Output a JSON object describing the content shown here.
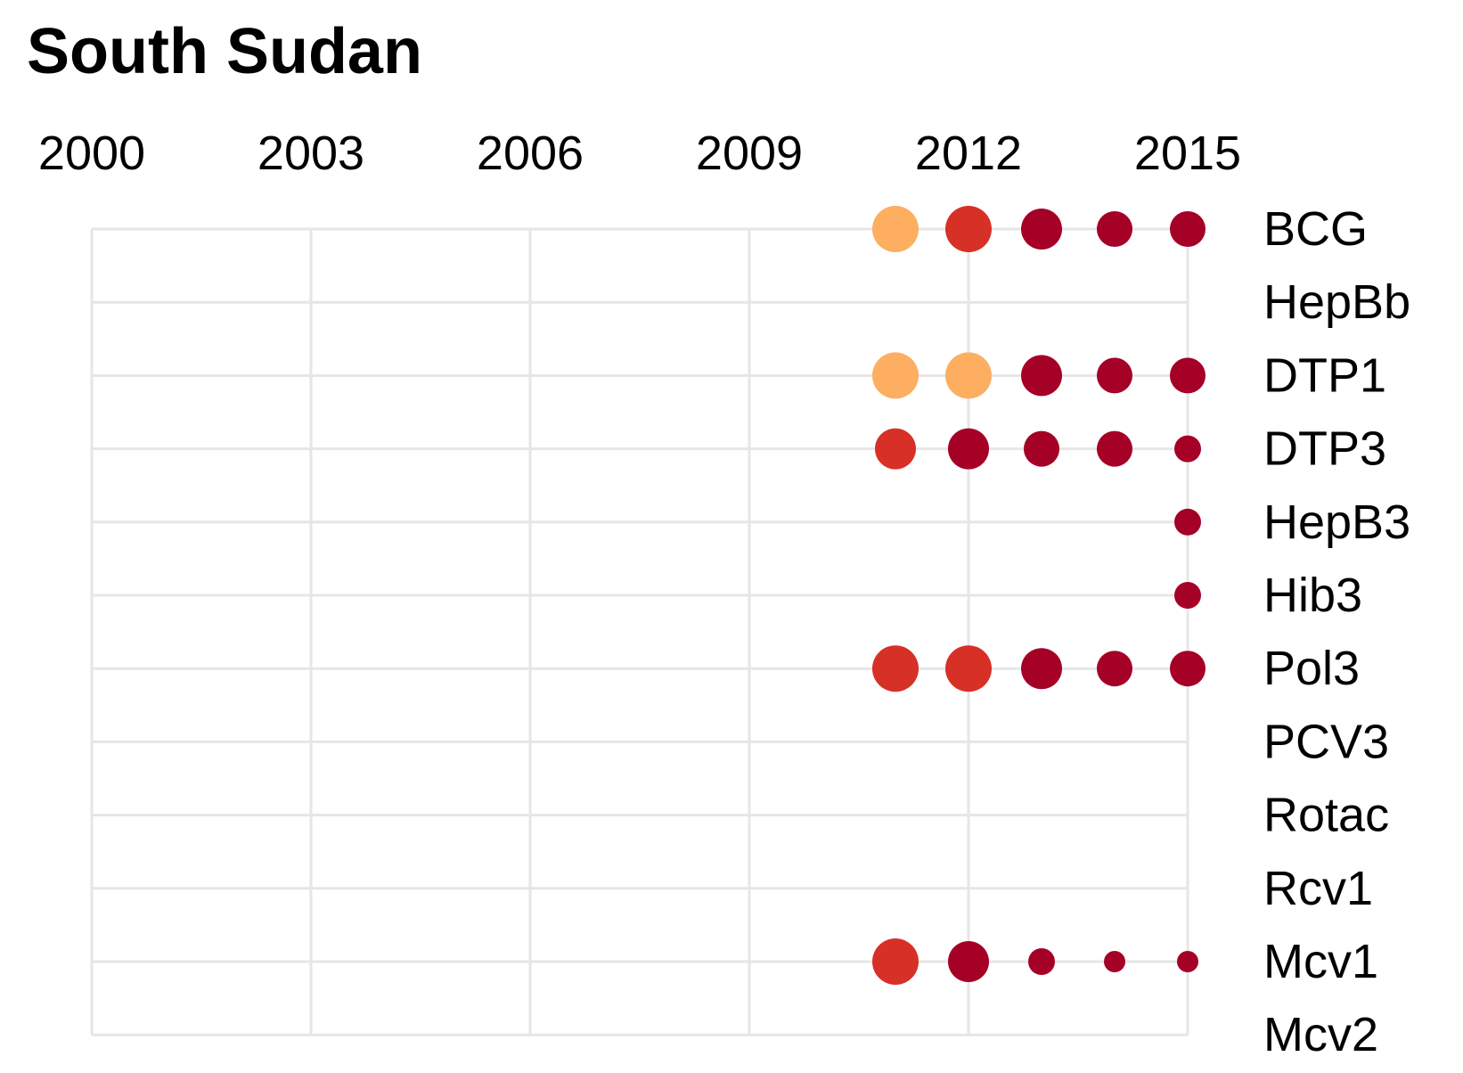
{
  "chart_data": {
    "type": "scatter",
    "title": "South Sudan",
    "x_ticks": [
      2000,
      2003,
      2006,
      2009,
      2012,
      2015
    ],
    "xlim": [
      2000,
      2015
    ],
    "rows": [
      "BCG",
      "HepBb",
      "DTP1",
      "DTP3",
      "HepB3",
      "Hib3",
      "Pol3",
      "PCV3",
      "Rotac",
      "Rcv1",
      "Mcv1",
      "Mcv2"
    ],
    "grid": true,
    "colors": {
      "orange": "#fdae61",
      "red": "#d73027",
      "dark_red": "#a50026",
      "grid": "#e6e6e6"
    },
    "points": [
      {
        "row": "BCG",
        "year": 2011,
        "color": "orange",
        "size": 4
      },
      {
        "row": "BCG",
        "year": 2012,
        "color": "red",
        "size": 4
      },
      {
        "row": "BCG",
        "year": 2013,
        "color": "dark_red",
        "size": 3
      },
      {
        "row": "BCG",
        "year": 2014,
        "color": "dark_red",
        "size": 2
      },
      {
        "row": "BCG",
        "year": 2015,
        "color": "dark_red",
        "size": 2
      },
      {
        "row": "DTP1",
        "year": 2011,
        "color": "orange",
        "size": 4
      },
      {
        "row": "DTP1",
        "year": 2012,
        "color": "orange",
        "size": 4
      },
      {
        "row": "DTP1",
        "year": 2013,
        "color": "dark_red",
        "size": 3
      },
      {
        "row": "DTP1",
        "year": 2014,
        "color": "dark_red",
        "size": 2
      },
      {
        "row": "DTP1",
        "year": 2015,
        "color": "dark_red",
        "size": 2
      },
      {
        "row": "DTP3",
        "year": 2011,
        "color": "red",
        "size": 3
      },
      {
        "row": "DTP3",
        "year": 2012,
        "color": "dark_red",
        "size": 3
      },
      {
        "row": "DTP3",
        "year": 2013,
        "color": "dark_red",
        "size": 2
      },
      {
        "row": "DTP3",
        "year": 2014,
        "color": "dark_red",
        "size": 2
      },
      {
        "row": "DTP3",
        "year": 2015,
        "color": "dark_red",
        "size": 1
      },
      {
        "row": "HepB3",
        "year": 2015,
        "color": "dark_red",
        "size": 1
      },
      {
        "row": "Hib3",
        "year": 2015,
        "color": "dark_red",
        "size": 1
      },
      {
        "row": "Pol3",
        "year": 2011,
        "color": "red",
        "size": 4
      },
      {
        "row": "Pol3",
        "year": 2012,
        "color": "red",
        "size": 4
      },
      {
        "row": "Pol3",
        "year": 2013,
        "color": "dark_red",
        "size": 3
      },
      {
        "row": "Pol3",
        "year": 2014,
        "color": "dark_red",
        "size": 2
      },
      {
        "row": "Pol3",
        "year": 2015,
        "color": "dark_red",
        "size": 2
      },
      {
        "row": "Mcv1",
        "year": 2011,
        "color": "red",
        "size": 4
      },
      {
        "row": "Mcv1",
        "year": 2012,
        "color": "dark_red",
        "size": 3
      },
      {
        "row": "Mcv1",
        "year": 2013,
        "color": "dark_red",
        "size": 1
      },
      {
        "row": "Mcv1",
        "year": 2014,
        "color": "dark_red",
        "size": 0
      },
      {
        "row": "Mcv1",
        "year": 2015,
        "color": "dark_red",
        "size": 0
      }
    ]
  }
}
